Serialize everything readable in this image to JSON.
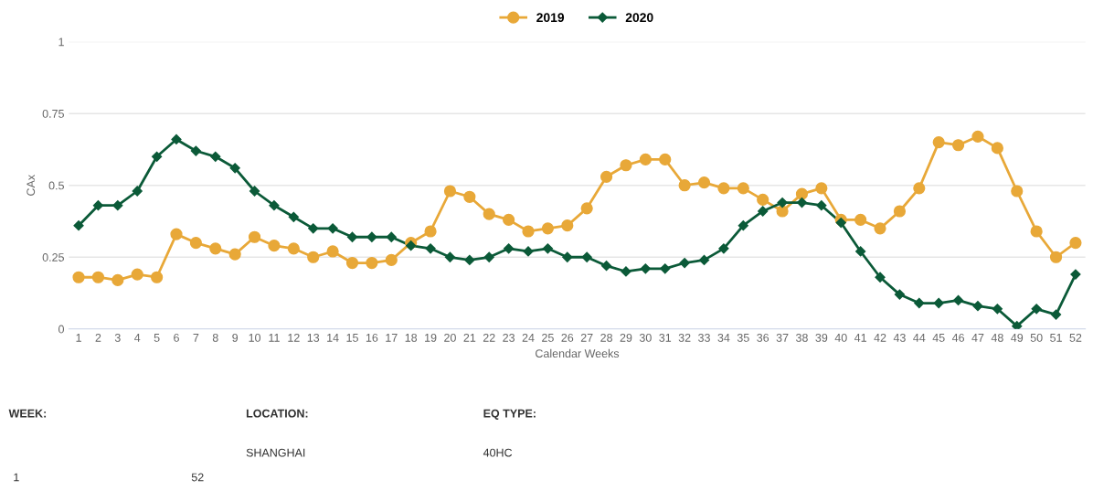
{
  "chart_data": {
    "type": "line",
    "xlabel": "Calendar Weeks",
    "ylabel": "CAx",
    "categories": [
      "1",
      "2",
      "3",
      "4",
      "5",
      "6",
      "7",
      "8",
      "9",
      "10",
      "11",
      "12",
      "13",
      "14",
      "15",
      "16",
      "17",
      "18",
      "19",
      "20",
      "21",
      "22",
      "23",
      "24",
      "25",
      "26",
      "27",
      "28",
      "29",
      "30",
      "31",
      "32",
      "33",
      "34",
      "35",
      "36",
      "37",
      "38",
      "39",
      "40",
      "41",
      "42",
      "43",
      "44",
      "45",
      "46",
      "47",
      "48",
      "49",
      "50",
      "51",
      "52"
    ],
    "series": [
      {
        "name": "2019",
        "color": "#e8a838",
        "marker": "circle",
        "values": [
          0.18,
          0.18,
          0.17,
          0.19,
          0.18,
          0.33,
          0.3,
          0.28,
          0.26,
          0.32,
          0.29,
          0.28,
          0.25,
          0.27,
          0.23,
          0.23,
          0.24,
          0.3,
          0.34,
          0.48,
          0.46,
          0.4,
          0.38,
          0.34,
          0.35,
          0.36,
          0.42,
          0.53,
          0.57,
          0.59,
          0.59,
          0.5,
          0.51,
          0.49,
          0.49,
          0.45,
          0.41,
          0.47,
          0.49,
          0.38,
          0.38,
          0.35,
          0.41,
          0.49,
          0.65,
          0.64,
          0.67,
          0.63,
          0.48,
          0.34,
          0.25,
          0.3
        ]
      },
      {
        "name": "2020",
        "color": "#0b5a38",
        "marker": "diamond",
        "values": [
          0.36,
          0.43,
          0.43,
          0.48,
          0.6,
          0.66,
          0.62,
          0.6,
          0.56,
          0.48,
          0.43,
          0.39,
          0.35,
          0.35,
          0.32,
          0.32,
          0.32,
          0.29,
          0.28,
          0.25,
          0.24,
          0.25,
          0.28,
          0.27,
          0.28,
          0.25,
          0.25,
          0.22,
          0.2,
          0.21,
          0.21,
          0.23,
          0.24,
          0.28,
          0.36,
          0.41,
          0.44,
          0.44,
          0.43,
          0.37,
          0.27,
          0.18,
          0.12,
          0.09,
          0.09,
          0.1,
          0.08,
          0.07,
          0.01,
          0.07,
          0.05,
          0.19
        ]
      }
    ],
    "ylim": [
      0,
      1
    ],
    "yticks": [
      0,
      0.25,
      0.5,
      0.75,
      1
    ],
    "grid": "y",
    "legend": "top",
    "annotations": [
      "WEEK:",
      "LOCATION:",
      "EQ TYPE:",
      "1",
      "52",
      "SHANGHAI",
      "40HC"
    ]
  }
}
